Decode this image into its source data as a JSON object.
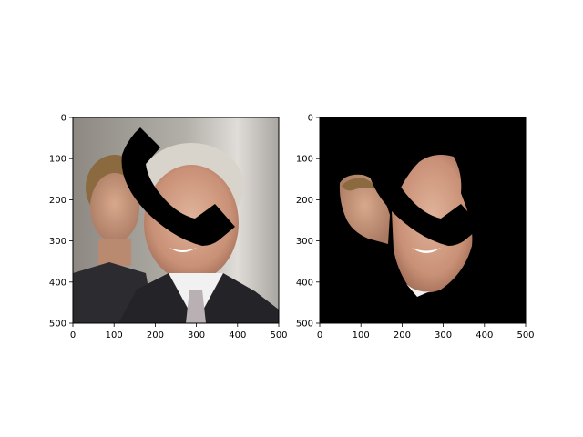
{
  "chart_data": [
    {
      "type": "image",
      "title": "",
      "xlabel": "",
      "ylabel": "",
      "xlim": [
        0,
        500
      ],
      "ylim": [
        500,
        0
      ],
      "xticks": [
        0,
        100,
        200,
        300,
        400,
        500
      ],
      "yticks": [
        0,
        100,
        200,
        300,
        400,
        500
      ],
      "xtick_labels": [
        "0",
        "100",
        "200",
        "300",
        "400",
        "500"
      ],
      "ytick_labels": [
        "0",
        "100",
        "200",
        "300",
        "400",
        "500"
      ],
      "image_content": "photo of two men (younger man on left, older bald man on right in suit and tie) with a black telephone-receiver mask shape drawn over the center",
      "background": "#8a8680"
    },
    {
      "type": "image",
      "title": "",
      "xlabel": "",
      "ylabel": "",
      "xlim": [
        0,
        500
      ],
      "ylim": [
        500,
        0
      ],
      "xticks": [
        0,
        100,
        200,
        300,
        400,
        500
      ],
      "yticks": [
        0,
        100,
        200,
        300,
        400,
        500
      ],
      "xtick_labels": [
        "0",
        "100",
        "200",
        "300",
        "400",
        "500"
      ],
      "ytick_labels": [
        "0",
        "100",
        "200",
        "300",
        "400",
        "500"
      ],
      "image_content": "same photo segmented: only the face regions of the two men visible on a black background, with the telephone-receiver mask removed",
      "background": "#000000"
    }
  ],
  "colors": {
    "mask": "#000000",
    "skin_light": "#d9a88c",
    "skin_mid": "#c48d72",
    "skin_shadow": "#9a6a55",
    "hair_blond": "#8a6a3e",
    "hair_gray": "#d8d4cc",
    "suit": "#2a2a2e",
    "shirt": "#f2f2f2",
    "tie": "#b8b0b2",
    "background_gray": "#8a8680",
    "background_light": "#cfccc7"
  }
}
